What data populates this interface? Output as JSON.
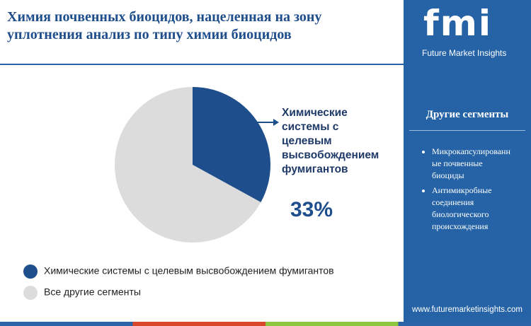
{
  "chart_data": {
    "type": "pie",
    "title": "Химия почвенных биоцидов, нацеленная на зону уплотнения анализ по типу химии биоцидов",
    "categories": [
      "Химические системы с целевым высвобождением фумигантов",
      "Все другие сегменты"
    ],
    "values": [
      33,
      67
    ],
    "value_labels": [
      "33%",
      null
    ],
    "colors": [
      "#1f4e8c",
      "#dcdcdc"
    ]
  },
  "sidebar": {
    "logo": "fmi",
    "brand": "Future Market Insights",
    "heading": "Другие сегменты",
    "items": [
      "Микрокапсулированные почвенные биоциды",
      "Антимикробные соединения биологического происхождения"
    ],
    "url": "www.futuremarketinsights.com"
  }
}
